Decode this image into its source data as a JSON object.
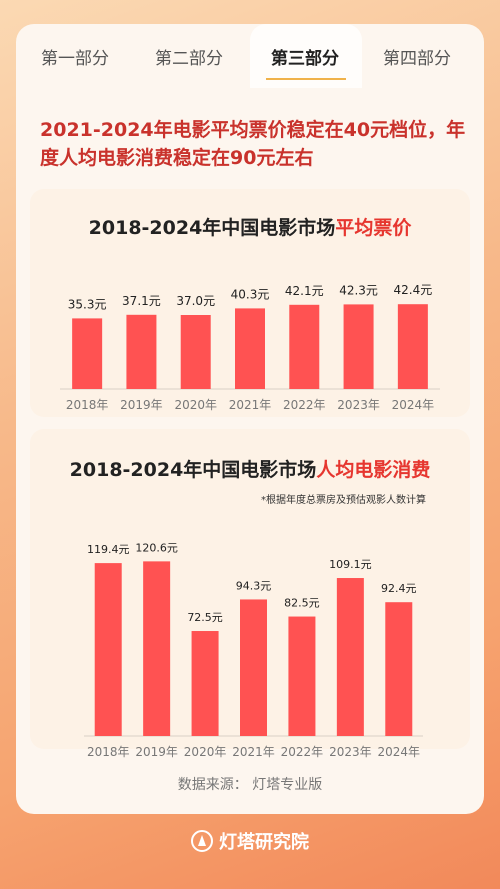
{
  "tabs": [
    "第一部分",
    "第二部分",
    "第三部分",
    "第四部分"
  ],
  "active_tab": 2,
  "headline": "2021-2024年电影平均票价稳定在40元档位，年度人均电影消费稳定在90元左右",
  "colors": {
    "bar": "#ff5252",
    "accent": "#e6362f",
    "headline": "#c9322c",
    "tab_underline": "#f0b24a"
  },
  "chart_data": [
    {
      "type": "bar",
      "title_prefix": "2018-2024年中国电影市场",
      "title_highlight": "平均票价",
      "categories": [
        "2018年",
        "2019年",
        "2020年",
        "2021年",
        "2022年",
        "2023年",
        "2024年"
      ],
      "values": [
        35.3,
        37.1,
        37.0,
        40.3,
        42.1,
        42.3,
        42.4
      ],
      "labels": [
        "35.3元",
        "37.1元",
        "37.0元",
        "40.3元",
        "42.1元",
        "42.3元",
        "42.4元"
      ],
      "ylim": [
        0,
        45
      ]
    },
    {
      "type": "bar",
      "title_prefix": "2018-2024年中国电影市场",
      "title_highlight": "人均电影消费",
      "note": "*根据年度总票房及预估观影人数计算",
      "categories": [
        "2018年",
        "2019年",
        "2020年",
        "2021年",
        "2022年",
        "2023年",
        "2024年"
      ],
      "values": [
        119.4,
        120.6,
        72.5,
        94.3,
        82.5,
        109.1,
        92.4
      ],
      "labels": [
        "119.4元",
        "120.6元",
        "72.5元",
        "94.3元",
        "82.5元",
        "109.1元",
        "92.4元"
      ],
      "ylim": [
        0,
        125
      ]
    }
  ],
  "source": "数据来源：  灯塔专业版",
  "brand": "灯塔研究院"
}
